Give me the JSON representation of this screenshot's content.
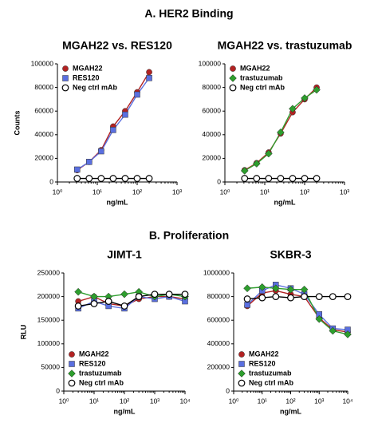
{
  "section_titles": [
    "A. HER2 Binding",
    "B. Proliferation"
  ],
  "chart_data": [
    {
      "type": "line",
      "title": "MGAH22 vs. RES120",
      "x_label": "ng/mL",
      "y_label": "Counts",
      "log_x": true,
      "legend": "upper left",
      "x": [
        3.125,
        6.25,
        12.5,
        25,
        50,
        100,
        200
      ],
      "xlim": [
        1,
        1000
      ],
      "xticks": [
        {
          "value": 1,
          "label": "10⁰"
        },
        {
          "value": 10,
          "label": "10¹"
        },
        {
          "value": 100,
          "label": "10²"
        },
        {
          "value": 1000,
          "label": "10³"
        }
      ],
      "ylim": [
        0,
        100000
      ],
      "yticks": [
        0,
        20000,
        40000,
        60000,
        80000,
        100000
      ],
      "series": [
        {
          "name": "MGAH22",
          "color": "#b22222",
          "marker": "circle",
          "values": [
            10000,
            17000,
            27000,
            47000,
            60000,
            76000,
            93000
          ]
        },
        {
          "name": "RES120",
          "color": "#5a6fe0",
          "marker": "square",
          "values": [
            10500,
            17000,
            26000,
            44000,
            57000,
            74000,
            88000
          ]
        },
        {
          "name": "Neg ctrl mAb",
          "color": "#000000",
          "marker": "open-circle",
          "values": [
            3000,
            3000,
            3000,
            3000,
            3000,
            3000,
            3000
          ]
        }
      ]
    },
    {
      "type": "line",
      "title": "MGAH22 vs. trastuzumab",
      "x_label": "ng/mL",
      "log_x": true,
      "legend": "upper left",
      "x": [
        3.125,
        6.25,
        12.5,
        25,
        50,
        100,
        200
      ],
      "xlim": [
        1,
        1000
      ],
      "xticks": [
        {
          "value": 1,
          "label": "10⁰"
        },
        {
          "value": 10,
          "label": "10¹"
        },
        {
          "value": 100,
          "label": "10²"
        },
        {
          "value": 1000,
          "label": "10³"
        }
      ],
      "ylim": [
        0,
        100000
      ],
      "yticks": [
        0,
        20000,
        40000,
        60000,
        80000,
        100000
      ],
      "series": [
        {
          "name": "MGAH22",
          "color": "#b22222",
          "marker": "circle",
          "values": [
            10000,
            16000,
            25000,
            41000,
            59000,
            70000,
            80000
          ]
        },
        {
          "name": "trastuzumab",
          "color": "#2e9e2e",
          "marker": "diamond",
          "values": [
            9500,
            15500,
            24000,
            42000,
            62000,
            71000,
            78000
          ]
        },
        {
          "name": "Neg ctrl mAb",
          "color": "#000000",
          "marker": "open-circle",
          "values": [
            3000,
            3000,
            3000,
            3000,
            3000,
            3000,
            3000
          ]
        }
      ]
    },
    {
      "type": "line",
      "title": "JIMT-1",
      "x_label": "ng/mL",
      "y_label": "RLU",
      "log_x": true,
      "legend": "lower left",
      "x": [
        3,
        10,
        30,
        100,
        300,
        1000,
        3000,
        10000
      ],
      "xlim": [
        1,
        10000
      ],
      "xticks": [
        {
          "value": 1,
          "label": "10⁰"
        },
        {
          "value": 10,
          "label": "10¹"
        },
        {
          "value": 100,
          "label": "10²"
        },
        {
          "value": 1000,
          "label": "10³"
        },
        {
          "value": 10000,
          "label": "10⁴"
        }
      ],
      "ylim": [
        0,
        250000
      ],
      "yticks": [
        0,
        50000,
        100000,
        150000,
        200000,
        250000
      ],
      "series": [
        {
          "name": "MGAH22",
          "color": "#b22222",
          "marker": "circle",
          "values": [
            190000,
            200000,
            185000,
            180000,
            195000,
            200000,
            200000,
            195000
          ]
        },
        {
          "name": "RES120",
          "color": "#5a6fe0",
          "marker": "square",
          "values": [
            175000,
            190000,
            180000,
            175000,
            200000,
            195000,
            200000,
            190000
          ]
        },
        {
          "name": "trastuzumab",
          "color": "#2e9e2e",
          "marker": "diamond",
          "values": [
            210000,
            200000,
            200000,
            205000,
            210000,
            200000,
            205000,
            200000
          ]
        },
        {
          "name": "Neg ctrl mAb",
          "color": "#000000",
          "marker": "open-circle",
          "values": [
            180000,
            185000,
            190000,
            180000,
            200000,
            205000,
            205000,
            205000
          ]
        }
      ]
    },
    {
      "type": "line",
      "title": "SKBR-3",
      "x_label": "ng/mL",
      "log_x": true,
      "legend": "lower left",
      "x": [
        3,
        10,
        30,
        100,
        300,
        1000,
        3000,
        10000
      ],
      "xlim": [
        1,
        10000
      ],
      "xticks": [
        {
          "value": 1,
          "label": "10⁰"
        },
        {
          "value": 10,
          "label": "10¹"
        },
        {
          "value": 100,
          "label": "10²"
        },
        {
          "value": 1000,
          "label": "10³"
        },
        {
          "value": 10000,
          "label": "10⁴"
        }
      ],
      "ylim": [
        0,
        1000000
      ],
      "yticks": [
        0,
        200000,
        400000,
        600000,
        800000,
        1000000
      ],
      "series": [
        {
          "name": "MGAH22",
          "color": "#b22222",
          "marker": "circle",
          "values": [
            720000,
            830000,
            850000,
            820000,
            800000,
            620000,
            520000,
            500000
          ]
        },
        {
          "name": "RES120",
          "color": "#5a6fe0",
          "marker": "square",
          "values": [
            730000,
            850000,
            900000,
            870000,
            820000,
            650000,
            530000,
            520000
          ]
        },
        {
          "name": "trastuzumab",
          "color": "#2e9e2e",
          "marker": "diamond",
          "values": [
            870000,
            880000,
            870000,
            860000,
            860000,
            610000,
            510000,
            480000
          ]
        },
        {
          "name": "Neg ctrl mAb",
          "color": "#000000",
          "marker": "open-circle",
          "values": [
            780000,
            790000,
            800000,
            790000,
            800000,
            800000,
            800000,
            800000
          ]
        }
      ]
    }
  ]
}
